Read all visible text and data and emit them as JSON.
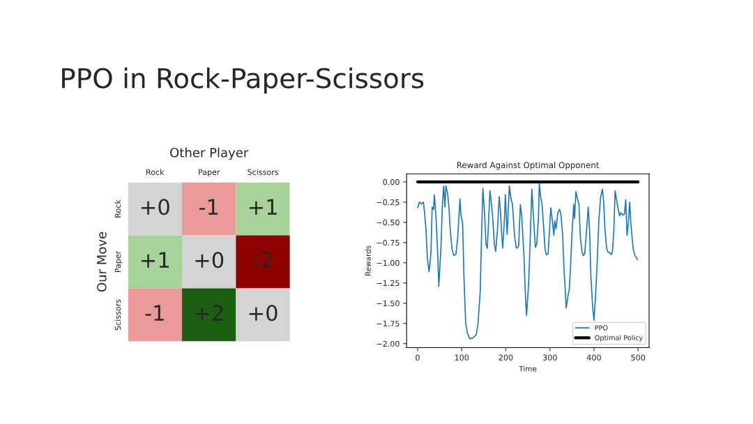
{
  "chart_data": [
    {
      "type": "heatmap",
      "title": "PPO in Rock-Paper-Scissors",
      "xlabel": "Other Player",
      "ylabel": "Our Move",
      "categories": [
        "Rock",
        "Paper",
        "Scissors"
      ],
      "y_categories": [
        "Rock",
        "Paper",
        "Scissors"
      ],
      "cells": [
        [
          0,
          -1,
          1
        ],
        [
          1,
          0,
          -2
        ],
        [
          -1,
          2,
          0
        ]
      ],
      "cell_labels": [
        [
          "+0",
          "-1",
          "+1"
        ],
        [
          "+1",
          "+0",
          "-2"
        ],
        [
          "-1",
          "+2",
          "+0"
        ]
      ]
    },
    {
      "type": "line",
      "title": "Reward Against Optimal Opponent",
      "xlabel": "Time",
      "ylabel": "Rewards",
      "xlim": [
        -25,
        525
      ],
      "xticks": [
        0,
        100,
        200,
        300,
        400,
        500
      ],
      "ylim": [
        -2.05,
        0.1
      ],
      "yticks": [
        {
          "value": -2.0,
          "label": "−2.00"
        },
        {
          "value": -1.75,
          "label": "−1.75"
        },
        {
          "value": -1.5,
          "label": "−1.50"
        },
        {
          "value": -1.25,
          "label": "−1.25"
        },
        {
          "value": -1.0,
          "label": "−1.00"
        },
        {
          "value": -0.75,
          "label": "−0.75"
        },
        {
          "value": -0.5,
          "label": "−0.50"
        },
        {
          "value": -0.25,
          "label": "−0.25"
        },
        {
          "value": 0,
          "label": "0.00"
        }
      ],
      "grid": false,
      "legend": "bottom right",
      "marker": "none",
      "line_style": "solid",
      "series": [
        {
          "name": "PPO",
          "color": "#1f77b4",
          "x": [
            0,
            4,
            8,
            11,
            13,
            16,
            19,
            22,
            26,
            30,
            33,
            36,
            38,
            42,
            45,
            48,
            53,
            56,
            59,
            62,
            64,
            68,
            71,
            74,
            78,
            82,
            87,
            91,
            93,
            96,
            98,
            102,
            105,
            109,
            113,
            118,
            125,
            133,
            137,
            142,
            145,
            148,
            152,
            155,
            158,
            161,
            164,
            167,
            170,
            174,
            177,
            181,
            185,
            188,
            191,
            193,
            197,
            199,
            203,
            208,
            212,
            215,
            220,
            224,
            229,
            233,
            236,
            241,
            244,
            247,
            252,
            256,
            259,
            263,
            267,
            270,
            274,
            276,
            279,
            282,
            286,
            289,
            292,
            296,
            299,
            302,
            305,
            309,
            311,
            314,
            318,
            322,
            325,
            329,
            332,
            335,
            337,
            341,
            344,
            347,
            350,
            354,
            356,
            359,
            363,
            366,
            369,
            373,
            376,
            379,
            384,
            387,
            390,
            393,
            397,
            400,
            403,
            407,
            411,
            415,
            419,
            422,
            425,
            429,
            432,
            435,
            439,
            442,
            445,
            448,
            452,
            455,
            458,
            461,
            465,
            469,
            472,
            475,
            478,
            481,
            484,
            489,
            493,
            499
          ],
          "values": [
            -0.32,
            -0.25,
            -0.27,
            -0.26,
            -0.25,
            -0.4,
            -0.6,
            -0.94,
            -1.11,
            -0.89,
            -0.31,
            -0.34,
            -0.16,
            -0.48,
            -0.83,
            -1.29,
            -0.8,
            -0.31,
            -0.05,
            -0.31,
            -0.05,
            -0.14,
            -0.31,
            -0.6,
            -0.83,
            -0.91,
            -0.89,
            -0.68,
            -0.48,
            -0.21,
            -0.4,
            -0.51,
            -1.17,
            -1.75,
            -1.87,
            -1.94,
            -1.93,
            -1.89,
            -1.75,
            -1.35,
            -0.66,
            -0.08,
            -0.4,
            -0.77,
            -0.82,
            -0.48,
            -0.11,
            -0.25,
            -0.42,
            -0.77,
            -0.86,
            -0.6,
            -0.18,
            -0.37,
            -0.68,
            -0.82,
            -0.45,
            -0.16,
            -0.65,
            -0.05,
            -0.22,
            -0.27,
            -0.68,
            -0.82,
            -0.8,
            -0.28,
            -0.42,
            -0.89,
            -1.35,
            -1.65,
            -1.23,
            -0.6,
            -0.09,
            -0.45,
            -0.81,
            -0.77,
            -0.45,
            -0.01,
            -0.19,
            -0.27,
            -0.57,
            -0.83,
            -0.9,
            -0.89,
            -0.6,
            -0.32,
            -0.45,
            -0.66,
            -0.48,
            -0.58,
            -0.38,
            -0.34,
            -0.4,
            -0.66,
            -1.09,
            -1.35,
            -1.56,
            -1.41,
            -1.33,
            -1.03,
            -0.66,
            -0.28,
            -0.45,
            -0.12,
            -0.22,
            -0.28,
            -0.68,
            -0.87,
            -0.91,
            -0.89,
            -0.54,
            -0.31,
            -0.6,
            -1.17,
            -1.55,
            -1.71,
            -1.46,
            -1.03,
            -0.48,
            -0.19,
            -0.09,
            -0.25,
            -0.6,
            -0.83,
            -0.87,
            -0.87,
            -0.9,
            -0.86,
            -0.6,
            -0.11,
            -0.25,
            -0.34,
            -0.42,
            -0.38,
            -0.41,
            -0.4,
            -0.22,
            -0.66,
            -0.51,
            -0.25,
            -0.54,
            -0.83,
            -0.91,
            -0.96
          ]
        },
        {
          "name": "Optimal Policy",
          "color": "#000000",
          "x": [
            0,
            500
          ],
          "values": [
            0,
            0
          ]
        }
      ]
    }
  ]
}
